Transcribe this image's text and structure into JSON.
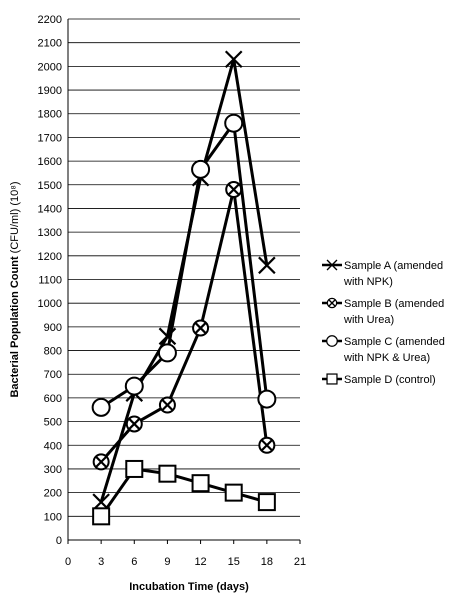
{
  "chart_data": {
    "type": "line",
    "xlabel": "Incubation Time (days)",
    "ylabel_main": "Bacterial Population Count ",
    "ylabel_unit": "(CFU/ml) (10⁸)",
    "xlim": [
      0,
      21
    ],
    "ylim": [
      0,
      2200
    ],
    "x_ticks": [
      "0",
      "3",
      "6",
      "9",
      "12",
      "15",
      "18",
      "21"
    ],
    "y_ticks": [
      "0",
      "100",
      "200",
      "300",
      "400",
      "500",
      "600",
      "700",
      "800",
      "900",
      "1000",
      "1100",
      "1200",
      "1300",
      "1400",
      "1500",
      "1600",
      "1700",
      "1800",
      "1900",
      "2000",
      "2100",
      "2200"
    ],
    "grid": "horizontal",
    "legend_position": "right",
    "series": [
      {
        "id": "a",
        "marker": "x",
        "legend": [
          "Sample A (amended",
          "with NPK)"
        ],
        "x": [
          3,
          6,
          9,
          12,
          15,
          18
        ],
        "y": [
          160,
          620,
          860,
          1530,
          2030,
          1160
        ]
      },
      {
        "id": "b",
        "marker": "circle-x",
        "legend": [
          "Sample B (amended",
          "with Urea)"
        ],
        "x": [
          3,
          6,
          9,
          12,
          15,
          18
        ],
        "y": [
          330,
          490,
          570,
          895,
          1480,
          400
        ]
      },
      {
        "id": "c",
        "marker": "circle",
        "legend": [
          "Sample C (amended",
          "with NPK & Urea)"
        ],
        "x": [
          3,
          6,
          9,
          12,
          15,
          18
        ],
        "y": [
          560,
          650,
          790,
          1565,
          1760,
          595
        ]
      },
      {
        "id": "d",
        "marker": "square",
        "legend": [
          "Sample D (control)"
        ],
        "x": [
          3,
          6,
          9,
          12,
          15,
          18
        ],
        "y": [
          100,
          300,
          280,
          240,
          200,
          160
        ]
      }
    ]
  }
}
